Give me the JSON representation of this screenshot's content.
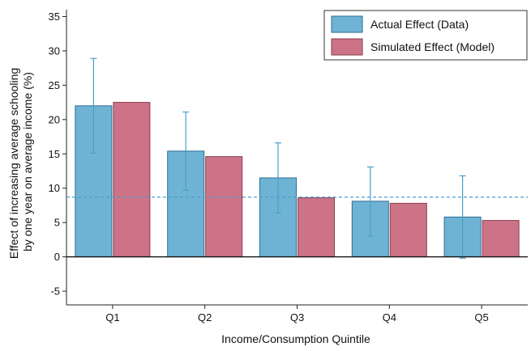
{
  "chart_data": {
    "type": "bar",
    "title": "",
    "xlabel": "Income/Consumption Quintile",
    "ylabel": "Effect of increasing average schooling by one year on average income (%)",
    "ylabel_lines": [
      "Effect of increasing average schooling",
      "by one year on average income (%)"
    ],
    "categories": [
      "Q1",
      "Q2",
      "Q3",
      "Q4",
      "Q5"
    ],
    "ylim": [
      -7,
      36
    ],
    "yticks": [
      -5,
      0,
      5,
      10,
      15,
      20,
      25,
      30,
      35
    ],
    "grid": false,
    "legend_position": "top-right",
    "reference_line": {
      "value": 8.7,
      "style": "dashed",
      "color": "#4a9fc9"
    },
    "series": [
      {
        "name": "Actual Effect (Data)",
        "values": [
          22.0,
          15.4,
          11.5,
          8.1,
          5.8
        ],
        "error_low": [
          15.1,
          9.7,
          6.4,
          3.0,
          -0.2
        ],
        "error_high": [
          28.9,
          21.1,
          16.6,
          13.1,
          11.8
        ],
        "color": "#6fb3d4"
      },
      {
        "name": "Simulated Effect (Model)",
        "values": [
          22.5,
          14.6,
          8.6,
          7.8,
          5.3
        ],
        "color": "#cc7387"
      }
    ],
    "errorbar_color": "#4a9fc9"
  }
}
